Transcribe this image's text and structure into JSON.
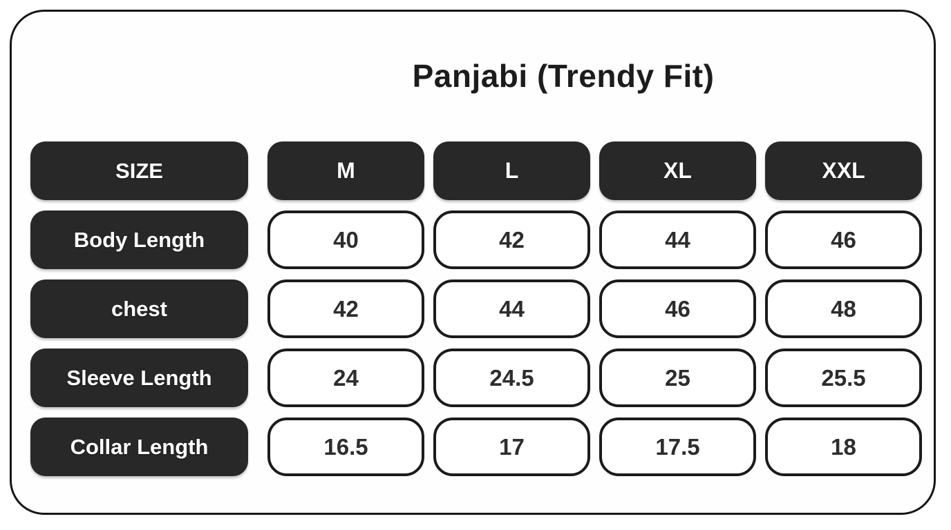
{
  "chart_data": {
    "type": "table",
    "title": "Panjabi (Trendy Fit)",
    "columns": [
      "SIZE",
      "M",
      "L",
      "XL",
      "XXL"
    ],
    "rows": [
      [
        "Body Length",
        40,
        42,
        44,
        46
      ],
      [
        "chest",
        42,
        44,
        46,
        48
      ],
      [
        "Sleeve Length",
        24,
        24.5,
        25,
        25.5
      ],
      [
        "Collar Length",
        16.5,
        17,
        17.5,
        18
      ]
    ],
    "layout": {
      "header_style": "dark-rounded-pill",
      "cell_style": "white-rounded-outline",
      "grid": false,
      "legend": "none"
    }
  },
  "colors": {
    "pill_background": "#282828",
    "pill_text": "#ffffff",
    "cell_border": "#1b1b1b",
    "cell_text": "#2d2d2d",
    "card_border": "#161616",
    "background": "#ffffff"
  }
}
